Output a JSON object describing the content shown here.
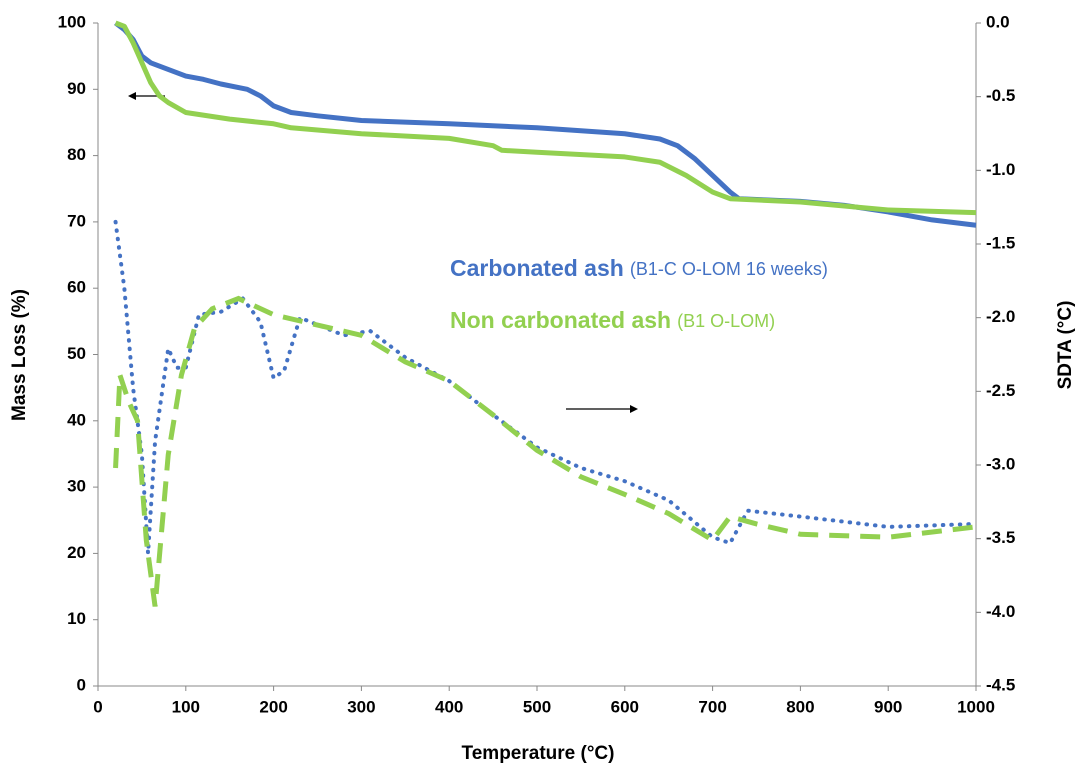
{
  "chart_data": {
    "type": "line",
    "xlabel": "Temperature (°C)",
    "ylabel": "Mass Loss (%)",
    "y2label": "SDTA (°C)",
    "xlim": [
      0,
      1000
    ],
    "xticks": [
      0,
      100,
      200,
      300,
      400,
      500,
      600,
      700,
      800,
      900,
      1000
    ],
    "ylim": [
      0,
      100
    ],
    "yticks": [
      0,
      10,
      20,
      30,
      40,
      50,
      60,
      70,
      80,
      90,
      100
    ],
    "y2lim": [
      -4.5,
      0
    ],
    "y2ticks": [
      -4.5,
      {
        "value": -4,
        "label": "-4.0"
      },
      -3.5,
      {
        "value": -3,
        "label": "-3.0"
      },
      -2.5,
      {
        "value": -2,
        "label": "-2.0"
      },
      -1.5,
      {
        "value": -1,
        "label": "-1.0"
      },
      -0.5,
      {
        "value": 0,
        "label": "0.0"
      }
    ],
    "grid": false,
    "legend": [
      {
        "label": "Carbonated ash",
        "detail": "(B1-C O-LOM 16 weeks)",
        "color": "#4472c4"
      },
      {
        "label": "Non carbonated ash",
        "detail": "(B1 O-LOM)",
        "color": "#92d050"
      }
    ],
    "series": [
      {
        "color": "#4472c4",
        "style": "solid",
        "axis": "y",
        "x": [
          20,
          30,
          40,
          50,
          60,
          80,
          100,
          120,
          140,
          170,
          185,
          200,
          220,
          250,
          300,
          400,
          500,
          600,
          640,
          660,
          680,
          700,
          720,
          730,
          800,
          850,
          900,
          950,
          1000
        ],
        "values": [
          100,
          99,
          97.5,
          95,
          94,
          93,
          92,
          91.5,
          90.8,
          90,
          89,
          87.5,
          86.5,
          86,
          85.3,
          84.8,
          84.2,
          83.3,
          82.5,
          81.5,
          79.5,
          77,
          74.5,
          73.5,
          73.1,
          72.5,
          71.5,
          70.3,
          69.5
        ]
      },
      {
        "color": "#92d050",
        "style": "solid",
        "axis": "y",
        "x": [
          20,
          30,
          40,
          50,
          60,
          70,
          80,
          100,
          150,
          200,
          220,
          300,
          400,
          450,
          460,
          500,
          600,
          640,
          670,
          700,
          720,
          800,
          900,
          1000
        ],
        "values": [
          100,
          99.5,
          97,
          94,
          91,
          89,
          88,
          86.5,
          85.5,
          84.8,
          84.2,
          83.3,
          82.6,
          81.5,
          80.8,
          80.5,
          79.8,
          79,
          77,
          74.5,
          73.5,
          73,
          71.8,
          71.4
        ]
      },
      {
        "color": "#4472c4",
        "style": "dotted",
        "axis": "y2",
        "x": [
          20,
          30,
          40,
          50,
          57,
          65,
          80,
          90,
          100,
          115,
          140,
          165,
          185,
          200,
          212,
          230,
          280,
          310,
          350,
          400,
          450,
          500,
          550,
          600,
          650,
          700,
          720,
          740,
          800,
          900,
          1000
        ],
        "values": [
          -1.35,
          -1.8,
          -2.48,
          -2.93,
          -3.6,
          -2.84,
          -2.21,
          -2.34,
          -2.34,
          -1.98,
          -1.96,
          -1.87,
          -2.03,
          -2.41,
          -2.36,
          -2.0,
          -2.12,
          -2.09,
          -2.27,
          -2.43,
          -2.66,
          -2.88,
          -3.02,
          -3.11,
          -3.24,
          -3.49,
          -3.53,
          -3.31,
          -3.35,
          -3.42,
          -3.4
        ]
      },
      {
        "color": "#92d050",
        "style": "dashed",
        "axis": "y2",
        "x": [
          20,
          25,
          35,
          45,
          55,
          65,
          80,
          95,
          110,
          130,
          160,
          200,
          250,
          300,
          350,
          400,
          450,
          500,
          550,
          600,
          650,
          700,
          720,
          750,
          800,
          900,
          1000
        ],
        "values": [
          -3.02,
          -2.39,
          -2.57,
          -2.7,
          -3.51,
          -3.96,
          -2.93,
          -2.39,
          -2.07,
          -1.94,
          -1.87,
          -1.98,
          -2.05,
          -2.12,
          -2.3,
          -2.43,
          -2.66,
          -2.9,
          -3.08,
          -3.2,
          -3.33,
          -3.51,
          -3.35,
          -3.4,
          -3.47,
          -3.49,
          -3.42
        ]
      }
    ]
  }
}
